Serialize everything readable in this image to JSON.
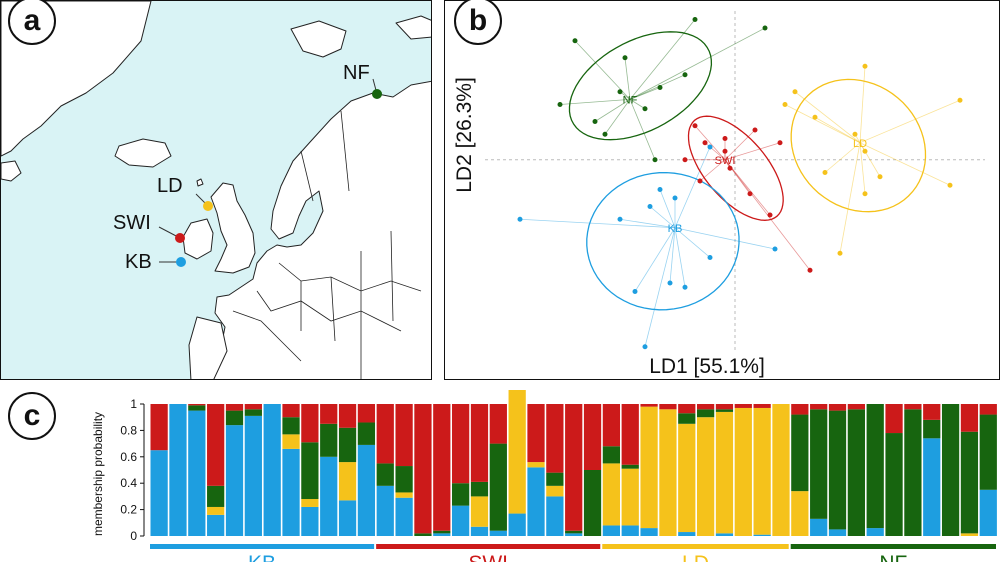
{
  "panels": {
    "a": "a",
    "b": "b",
    "c": "c"
  },
  "map": {
    "sites": [
      {
        "code": "NF"
      },
      {
        "code": "LD"
      },
      {
        "code": "SWI"
      },
      {
        "code": "KB"
      }
    ]
  },
  "colors": {
    "KB": "#1e9ee0",
    "SWI": "#cc1a1a",
    "LD": "#f5c21b",
    "NF": "#17650f",
    "map_sea": "#d9f3f5"
  },
  "chart_data": [
    {
      "type": "scatter",
      "title": "",
      "xlabel": "LD1 [55.1%]",
      "ylabel": "LD2 [26.3%]",
      "xlim": [
        -5,
        5
      ],
      "ylim": [
        -4.5,
        3.5
      ],
      "groups": [
        {
          "name": "NF",
          "color": "#17650f",
          "centroid": [
            -2.1,
            1.42
          ],
          "points": [
            [
              -3.2,
              2.8
            ],
            [
              -0.8,
              3.3
            ],
            [
              -2.2,
              2.4
            ],
            [
              0.6,
              3.1
            ],
            [
              -1.0,
              2.0
            ],
            [
              -3.5,
              1.3
            ],
            [
              -2.8,
              0.9
            ],
            [
              -1.8,
              1.2
            ],
            [
              -2.3,
              1.6
            ],
            [
              -1.5,
              1.7
            ],
            [
              -2.6,
              0.6
            ],
            [
              -1.6,
              0.0
            ]
          ]
        },
        {
          "name": "SWI",
          "color": "#cc1a1a",
          "centroid": [
            -0.2,
            0.0
          ],
          "points": [
            [
              -0.8,
              0.8
            ],
            [
              -0.6,
              0.4
            ],
            [
              -1.0,
              0.0
            ],
            [
              -0.2,
              0.5
            ],
            [
              0.4,
              0.7
            ],
            [
              -0.1,
              -0.2
            ],
            [
              -0.7,
              -0.5
            ],
            [
              0.3,
              -0.8
            ],
            [
              0.7,
              -1.3
            ],
            [
              1.5,
              -2.6
            ],
            [
              -0.2,
              0.2
            ],
            [
              0.9,
              0.4
            ]
          ]
        },
        {
          "name": "LD",
          "color": "#f5c21b",
          "centroid": [
            2.5,
            0.4
          ],
          "points": [
            [
              2.6,
              2.2
            ],
            [
              4.5,
              1.4
            ],
            [
              1.2,
              1.6
            ],
            [
              1.6,
              1.0
            ],
            [
              2.4,
              0.6
            ],
            [
              2.9,
              -0.4
            ],
            [
              2.6,
              -0.8
            ],
            [
              4.3,
              -0.6
            ],
            [
              1.8,
              -0.3
            ],
            [
              1.0,
              1.3
            ],
            [
              2.6,
              0.2
            ],
            [
              2.1,
              -2.2
            ]
          ]
        },
        {
          "name": "KB",
          "color": "#1e9ee0",
          "centroid": [
            -1.2,
            -1.6
          ],
          "points": [
            [
              -4.3,
              -1.4
            ],
            [
              -1.5,
              -0.7
            ],
            [
              -1.2,
              -0.9
            ],
            [
              -0.5,
              0.3
            ],
            [
              -2.3,
              -1.4
            ],
            [
              -1.7,
              -1.1
            ],
            [
              -0.5,
              -2.3
            ],
            [
              -1.0,
              -3.0
            ],
            [
              -2.0,
              -3.1
            ],
            [
              -1.3,
              -2.9
            ],
            [
              -1.8,
              -4.4
            ],
            [
              0.8,
              -2.1
            ]
          ]
        }
      ],
      "axes_crosshair": [
        0,
        0
      ]
    },
    {
      "type": "bar",
      "stacked": true,
      "ylabel": "membership probability",
      "yticks": [
        "0",
        "0.2",
        "0.4",
        "0.6",
        "0.8",
        "1"
      ],
      "ylim": [
        0,
        1
      ],
      "series_order": [
        "KB",
        "LD",
        "NF",
        "SWI"
      ],
      "groups": [
        {
          "name": "KB",
          "count": 12
        },
        {
          "name": "SWI",
          "count": 12
        },
        {
          "name": "LD",
          "count": 10
        },
        {
          "name": "NF",
          "count": 11
        }
      ],
      "individuals": [
        [
          0.65,
          0,
          0,
          0.35
        ],
        [
          1.0,
          0,
          0,
          0
        ],
        [
          0.95,
          0,
          0.04,
          0.01
        ],
        [
          0.16,
          0.06,
          0.16,
          0.62
        ],
        [
          0.84,
          0,
          0.11,
          0.05
        ],
        [
          0.91,
          0,
          0.05,
          0.04
        ],
        [
          1.0,
          0,
          0,
          0
        ],
        [
          0.66,
          0.11,
          0.13,
          0.1
        ],
        [
          0.22,
          0.06,
          0.43,
          0.29
        ],
        [
          0.6,
          0,
          0.25,
          0.15
        ],
        [
          0.27,
          0.29,
          0.26,
          0.18
        ],
        [
          0.69,
          0,
          0.17,
          0.14
        ],
        [
          0.38,
          0,
          0.17,
          0.45
        ],
        [
          0.29,
          0.04,
          0.2,
          0.47
        ],
        [
          0,
          0,
          0.02,
          0.98
        ],
        [
          0.02,
          0,
          0.02,
          0.96
        ],
        [
          0.23,
          0,
          0.17,
          0.6
        ],
        [
          0.07,
          0.23,
          0.11,
          0.59
        ],
        [
          0.04,
          0,
          0.66,
          0.3
        ],
        [
          0.17,
          0.98,
          0,
          0
        ],
        [
          0.52,
          0.04,
          0,
          0.44
        ],
        [
          0.3,
          0.08,
          0.1,
          0.52
        ],
        [
          0.02,
          0,
          0.02,
          0.96
        ],
        [
          0,
          0,
          0.5,
          0.5
        ],
        [
          0.08,
          0.47,
          0.13,
          0.32
        ],
        [
          0.08,
          0.43,
          0.03,
          0.46
        ],
        [
          0.06,
          0.92,
          0,
          0.02
        ],
        [
          0,
          0.96,
          0,
          0.04
        ],
        [
          0.03,
          0.82,
          0.08,
          0.07
        ],
        [
          0,
          0.9,
          0.06,
          0.04
        ],
        [
          0.02,
          0.92,
          0.02,
          0.04
        ],
        [
          0,
          0.97,
          0,
          0.03
        ],
        [
          0.01,
          0.96,
          0,
          0.03
        ],
        [
          0,
          1.0,
          0,
          0
        ],
        [
          0,
          0.34,
          0.58,
          0.08
        ],
        [
          0.13,
          0,
          0.83,
          0.04
        ],
        [
          0.05,
          0,
          0.9,
          0.05
        ],
        [
          0,
          0,
          0.96,
          0.04
        ],
        [
          0.06,
          0,
          0.94,
          0
        ],
        [
          0,
          0,
          0.78,
          0.22
        ],
        [
          0,
          0,
          0.96,
          0.04
        ],
        [
          0.74,
          0,
          0.14,
          0.12
        ],
        [
          0,
          0,
          1.0,
          0
        ],
        [
          0,
          0.02,
          0.77,
          0.21
        ],
        [
          0.35,
          0,
          0.57,
          0.08
        ]
      ]
    }
  ]
}
